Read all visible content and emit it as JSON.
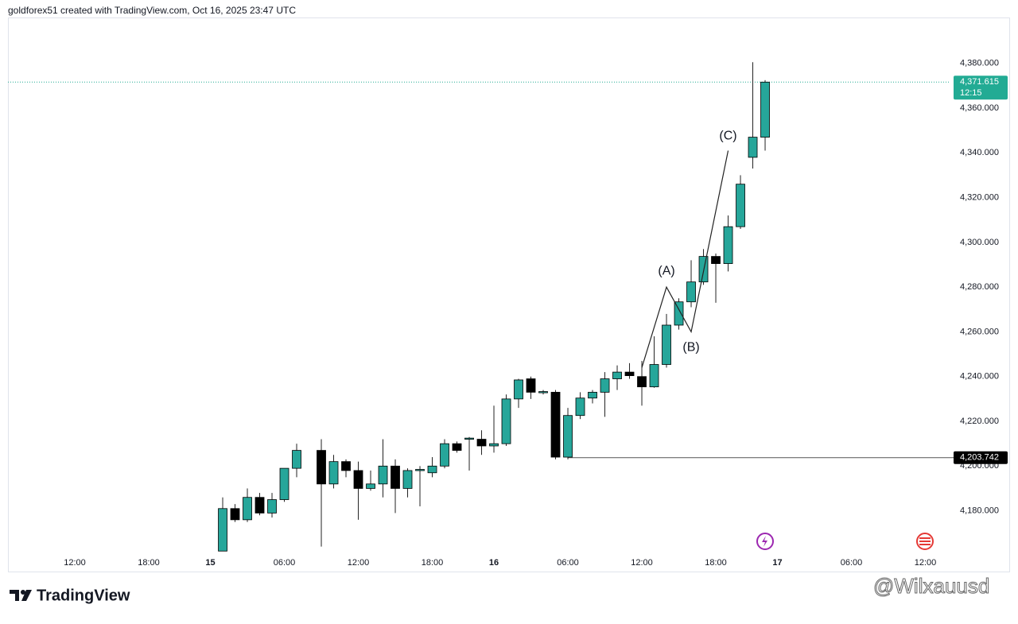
{
  "header": "goldforex51 created with TradingView.com, Oct 16, 2025 23:47 UTC",
  "logo": "TradingView",
  "watermark": "@Wilxauusd",
  "chart_data": {
    "type": "candlestick",
    "up_color": "#26a69a",
    "down_color": "#000000",
    "wick_color": "#222222",
    "open": [
      4162,
      4181,
      4176,
      4186,
      4179,
      4185,
      4199,
      null,
      4207,
      4192,
      4202,
      4198,
      4190,
      4192,
      4200,
      4190,
      4198,
      4197,
      4200,
      4210,
      4212,
      4212,
      4209,
      4210,
      4230,
      4239,
      4233,
      4233,
      4204,
      4222.6,
      4230.4,
      4233,
      4239,
      4242,
      4240,
      4235.4,
      4245.4,
      4263,
      4273.4,
      4282.3,
      4293.7,
      4290.5,
      4307,
      4338,
      4347
    ],
    "high": [
      4186,
      4183,
      4190,
      4188,
      4188,
      4199,
      4210,
      null,
      4212,
      4205,
      4203,
      4202,
      4198,
      4212,
      4203,
      4199,
      4200,
      4204,
      4212,
      4211,
      4213,
      4216,
      4227,
      4232,
      4239,
      4240,
      4234,
      4234,
      4226,
      4233,
      4234,
      4242,
      4245,
      4246,
      4247,
      4258,
      4268,
      4275,
      4292,
      4297,
      4295,
      4312,
      4330,
      4380.5,
      4372.5
    ],
    "low": [
      4162,
      4175,
      4175,
      4178,
      4177,
      4184,
      4195,
      null,
      4164,
      4190,
      4195,
      4176,
      4189,
      4186,
      4179,
      4186,
      4182,
      4195,
      4199,
      4206,
      4198,
      4205,
      4206,
      4209,
      4226,
      4230,
      4232,
      4203,
      4203,
      4221,
      4228,
      4222,
      4234,
      4239,
      4227,
      4235,
      4244,
      4261,
      4271,
      4281,
      4273,
      4287,
      4306,
      4333,
      4341
    ],
    "close": [
      4181,
      4176,
      4186,
      4179,
      4185,
      4199,
      4207,
      null,
      4192,
      4202,
      4198,
      4190,
      4192,
      4200,
      4190,
      4198,
      4198.5,
      4200,
      4210,
      4207,
      4212.5,
      4209,
      4210,
      4230,
      4238.5,
      4233,
      4233.3,
      4204,
      4222.6,
      4230.4,
      4233,
      4239,
      4242,
      4240.4,
      4235.4,
      4245.4,
      4263,
      4273.4,
      4282.3,
      4293.7,
      4290.5,
      4307,
      4326,
      4347,
      4371.615
    ],
    "xlim": [
      -17.42,
      59.03
    ],
    "xticks": [
      {
        "value": -12,
        "label": "12:00"
      },
      {
        "value": -6,
        "label": "18:00"
      },
      {
        "value": -1,
        "label": "15"
      },
      {
        "value": 5,
        "label": "06:00"
      },
      {
        "value": 11,
        "label": "12:00"
      },
      {
        "value": 17,
        "label": "18:00"
      },
      {
        "value": 22,
        "label": "16"
      },
      {
        "value": 28,
        "label": "06:00"
      },
      {
        "value": 34,
        "label": "12:00"
      },
      {
        "value": 40,
        "label": "18:00"
      },
      {
        "value": 45,
        "label": "17"
      },
      {
        "value": 51,
        "label": "06:00"
      },
      {
        "value": 57,
        "label": "12:00"
      }
    ],
    "ylim": [
      4152.5,
      4400.5
    ],
    "yticks": [
      {
        "value": 4180,
        "label": "4,180.000"
      },
      {
        "value": 4200,
        "label": "4,200.000"
      },
      {
        "value": 4220,
        "label": "4,220.000"
      },
      {
        "value": 4240,
        "label": "4,240.000"
      },
      {
        "value": 4260,
        "label": "4,260.000"
      },
      {
        "value": 4280,
        "label": "4,280.000"
      },
      {
        "value": 4300,
        "label": "4,300.000"
      },
      {
        "value": 4320,
        "label": "4,320.000"
      },
      {
        "value": 4340,
        "label": "4,340.000"
      },
      {
        "value": 4360,
        "label": "4,360.000"
      },
      {
        "value": 4380,
        "label": "4,380.000"
      }
    ],
    "last_price": {
      "value": 4371.615,
      "label": "4,371.615",
      "countdown": "12:15",
      "color": "#22ab94"
    },
    "level": {
      "value": 4203.742,
      "label": "4,203.742",
      "start": 28
    },
    "wave": {
      "x": [
        34,
        36,
        38,
        41
      ],
      "y": [
        4244,
        4280,
        4260,
        4341
      ],
      "labels": [
        null,
        "(A)",
        "(B)",
        "(C)"
      ]
    }
  }
}
